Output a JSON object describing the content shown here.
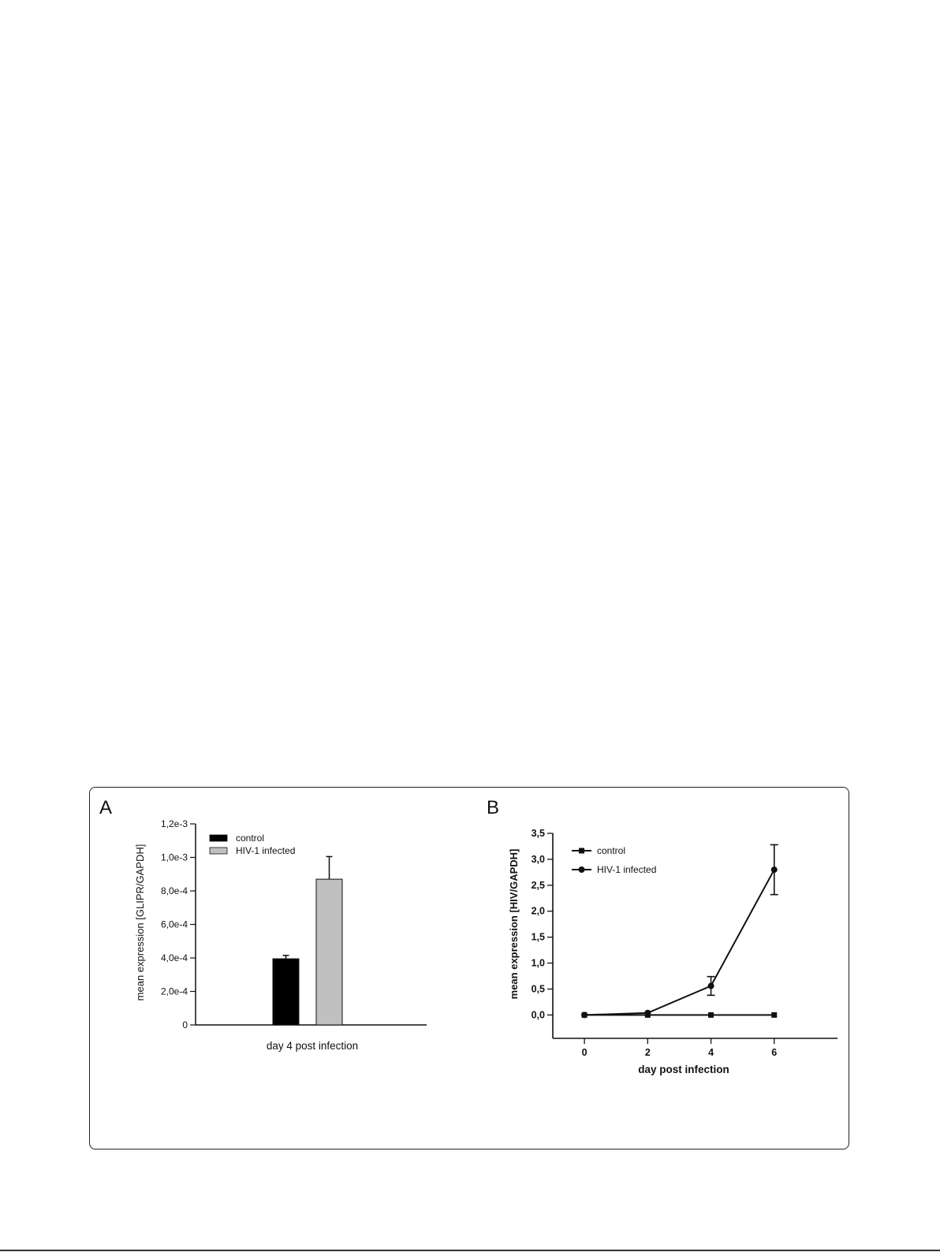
{
  "panel_labels": [
    "A",
    "B"
  ],
  "chart_data": [
    {
      "panel": "A",
      "type": "bar",
      "title": "",
      "xlabel": "day 4 post infection",
      "ylabel": "mean expression [GLIPR/GAPDH]",
      "ylim": [
        0,
        0.0012
      ],
      "yticks": [
        0,
        0.0002,
        0.0004,
        0.0006,
        0.0008,
        0.001,
        0.0012
      ],
      "yticklabels": [
        "0",
        "2,0e-4",
        "4,0e-4",
        "6,0e-4",
        "8,0e-4",
        "1,0e-3",
        "1,2e-3"
      ],
      "legend_position": "top-left",
      "series": [
        {
          "name": "control",
          "value": 0.000395,
          "error": 2e-05,
          "color": "#000000"
        },
        {
          "name": "HIV-1 infected",
          "value": 0.00087,
          "error": 0.000135,
          "color": "#c0c0c0"
        }
      ]
    },
    {
      "panel": "B",
      "type": "line",
      "title": "",
      "xlabel": "day post infection",
      "ylabel": "mean expression [HIV/GAPDH]",
      "x": [
        0,
        2,
        4,
        6
      ],
      "xticklabels": [
        "0",
        "2",
        "4",
        "6"
      ],
      "xlim": [
        -1,
        8
      ],
      "ylim": [
        -0.45,
        3.5
      ],
      "yticks": [
        0,
        0.5,
        1,
        1.5,
        2,
        2.5,
        3,
        3.5
      ],
      "yticklabels": [
        "0,0",
        "0,5",
        "1,0",
        "1,5",
        "2,0",
        "2,5",
        "3,0",
        "3,5"
      ],
      "legend_position": "top-left",
      "series": [
        {
          "name": "control",
          "marker": "square",
          "values": [
            0,
            0,
            0,
            0
          ],
          "errors": [
            0,
            0,
            0,
            0
          ]
        },
        {
          "name": "HIV-1 infected",
          "marker": "circle",
          "values": [
            0,
            0.04,
            0.56,
            2.8
          ],
          "errors": [
            0,
            0,
            0.18,
            0.48
          ]
        }
      ]
    }
  ]
}
